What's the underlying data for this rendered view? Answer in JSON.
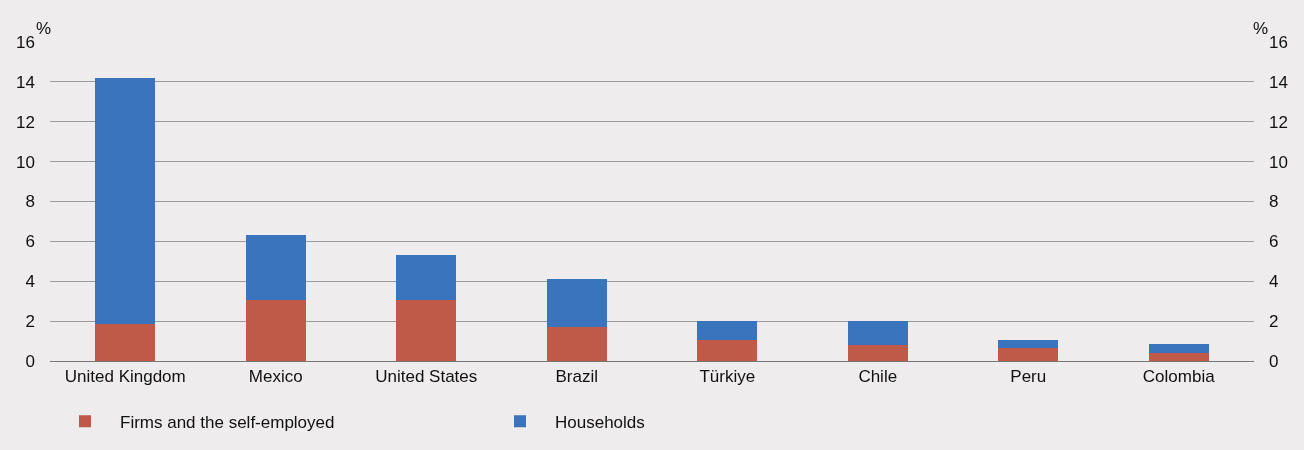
{
  "chart_data": {
    "type": "bar",
    "stacked": true,
    "categories": [
      "United Kingdom",
      "Mexico",
      "United States",
      "Brazil",
      "Türkiye",
      "Chile",
      "Peru",
      "Colombia"
    ],
    "series": [
      {
        "name": "Firms and the self-employed",
        "color": "#bf5a48",
        "values": [
          1.85,
          3.05,
          3.05,
          1.7,
          1.05,
          0.8,
          0.65,
          0.4
        ]
      },
      {
        "name": "Households",
        "color": "#3a74bd",
        "values": [
          12.35,
          3.25,
          2.25,
          2.4,
          0.95,
          1.2,
          0.4,
          0.45
        ]
      }
    ],
    "ylabel": "%",
    "y2label": "%",
    "ylim": [
      0,
      16
    ],
    "yticks": [
      0,
      2,
      4,
      6,
      8,
      10,
      12,
      14,
      16
    ],
    "y2lim": [
      0,
      16
    ],
    "y2ticks": [
      0,
      2,
      4,
      6,
      8,
      10,
      12,
      14,
      16
    ],
    "grid": "y",
    "legend": "bottom left"
  }
}
